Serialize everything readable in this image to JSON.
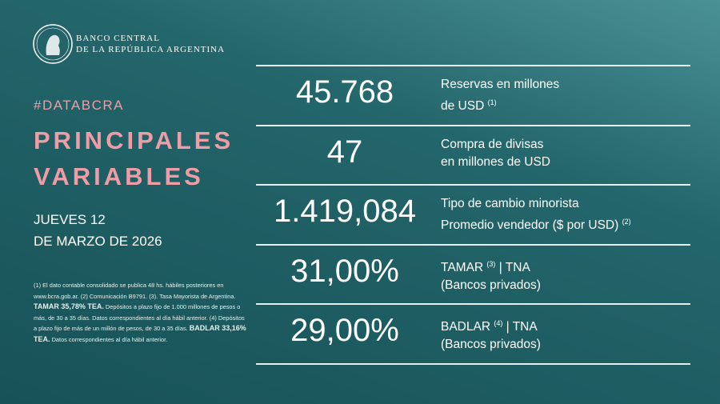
{
  "header": {
    "bank_line1": "BANCO CENTRAL",
    "bank_line2": "DE LA REPÚBLICA ARGENTINA"
  },
  "hashtag": "#DATABCRA",
  "title_line1": "PRINCIPALES",
  "title_line2": "VARIABLES",
  "date_line1": "JUEVES 12",
  "date_line2": "DE MARZO DE 2026",
  "footnote": [
    {
      "text": "(1) El dato contable consolidado se publica 48 hs. hábiles posteriores en www.bcra.gob.ar. (2) Comunicación B9791. (3). Tasa Mayorista de Argentina. "
    },
    {
      "text": "TAMAR 35,78% TEA.",
      "bold": true
    },
    {
      "text": " Depósitos a plazo fijo de 1.000 millones de pesos o más, de 30 a 35 días. Datos correspondientes al día hábil anterior. (4) Depósitos a plazo fijo de más de un millón de pesos, de 30 a 35 días. "
    },
    {
      "text": "BADLAR 33,16% TEA.",
      "bold": true
    },
    {
      "text": " Datos correspondientes al día hábil anterior."
    }
  ],
  "rows": [
    {
      "value": "45.768",
      "lines": [
        [
          "Reservas en millones"
        ],
        [
          "de USD",
          {
            "sup": "(1)"
          }
        ]
      ]
    },
    {
      "value": "47",
      "lines": [
        [
          "Compra de divisas"
        ],
        [
          "en millones de USD"
        ]
      ]
    },
    {
      "value": "1.419,084",
      "lines": [
        [
          "Tipo de cambio minorista"
        ],
        [
          "Promedio vendedor ($ por USD)",
          {
            "sup": "(2)"
          }
        ]
      ]
    },
    {
      "value": "31,00%",
      "lines": [
        [
          "TAMAR",
          {
            "sup": "(3)"
          },
          "| TNA"
        ],
        [
          "(Bancos privados)"
        ]
      ]
    },
    {
      "value": "29,00%",
      "lines": [
        [
          "BADLAR",
          {
            "sup": "(4)"
          },
          "| TNA"
        ],
        [
          "(Bancos privados)"
        ]
      ]
    }
  ]
}
